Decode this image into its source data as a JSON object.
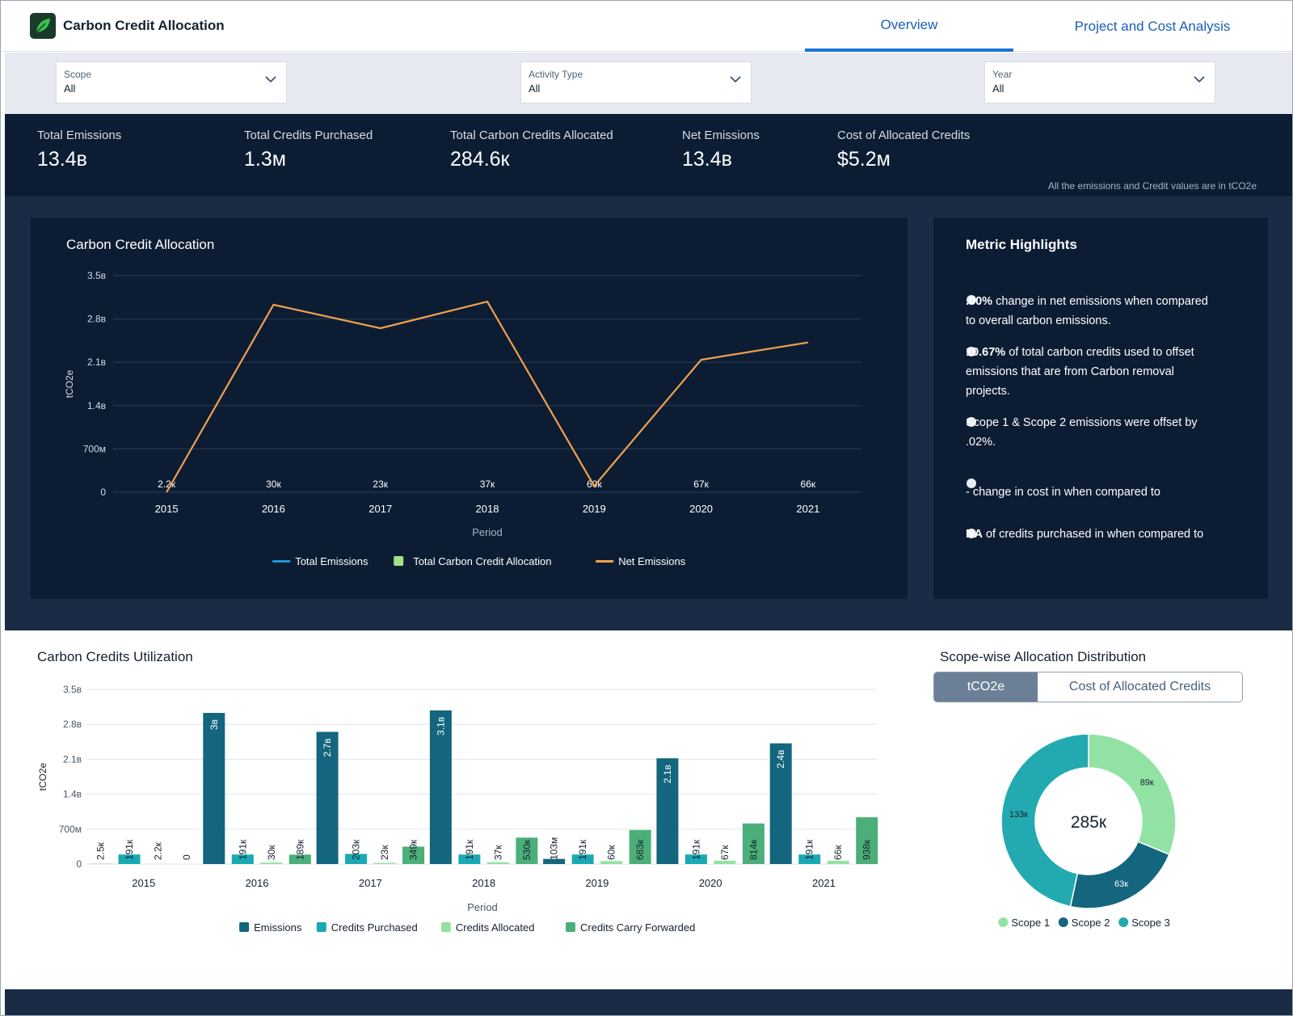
{
  "header": {
    "title": "Carbon Credit Allocation",
    "tabs": [
      {
        "label": "Overview",
        "active": true
      },
      {
        "label": "Project and Cost Analysis",
        "active": false
      }
    ]
  },
  "filters": [
    {
      "label": "Scope",
      "value": "All"
    },
    {
      "label": "Activity Type",
      "value": "All"
    },
    {
      "label": "Year",
      "value": "All"
    }
  ],
  "kpis": [
    {
      "label": "Total Emissions",
      "value": "13.4в"
    },
    {
      "label": "Total Credits Purchased",
      "value": "1.3м"
    },
    {
      "label": "Total Carbon Credits Allocated",
      "value": "284.6к"
    },
    {
      "label": "Net Emissions",
      "value": "13.4в"
    },
    {
      "label": "Cost of Allocated Credits",
      "value": "$5.2м"
    }
  ],
  "units_note": "All the emissions and Credit values are in tCO2e",
  "highlights": {
    "title": "Metric Highlights",
    "items": [
      {
        "bold": ".00%",
        "text": " change in net emissions when compared to overall carbon emissions."
      },
      {
        "bold": "10.67%",
        "text": "  of total carbon credits used to offset emissions that are from Carbon removal projects."
      },
      {
        "bold": "",
        "text": "Scope 1 & Scope 2 emissions were offset by .02%."
      },
      {
        "bold": "",
        "text": "-  change in cost in   when compared to"
      },
      {
        "bold": "NA",
        "text": " of credits purchased in  when compared to"
      }
    ]
  },
  "chart_data": [
    {
      "type": "line",
      "title": "Carbon Credit Allocation",
      "xlabel": "Period",
      "ylabel": "tCO2e",
      "categories": [
        "2015",
        "2016",
        "2017",
        "2018",
        "2019",
        "2020",
        "2021"
      ],
      "y_ticks": [
        "0",
        "700м",
        "1.4в",
        "2.1в",
        "2.8в",
        "3.5в"
      ],
      "ylim": [
        0,
        3.5
      ],
      "series": [
        {
          "name": "Net Emissions",
          "color": "#f0a050",
          "values": [
            0.0,
            3.03,
            2.65,
            3.08,
            0.1,
            2.14,
            2.42
          ]
        }
      ],
      "data_labels": [
        "2.2к",
        "30к",
        "23к",
        "37к",
        "60к",
        "67к",
        "66к"
      ],
      "legend": [
        {
          "name": "Total Emissions",
          "color": "#1b96d8",
          "shape": "line"
        },
        {
          "name": "Total Carbon Credit Allocation",
          "color": "#a8e08a",
          "shape": "square"
        },
        {
          "name": "Net Emissions",
          "color": "#f0a050",
          "shape": "line"
        }
      ],
      "grid": true
    },
    {
      "type": "bar",
      "title": "Carbon Credits Utilization",
      "xlabel": "Period",
      "ylabel": "tCO2e",
      "categories": [
        "2015",
        "2016",
        "2017",
        "2018",
        "2019",
        "2020",
        "2021"
      ],
      "y_ticks": [
        "0",
        "700м",
        "1.4в",
        "2.1в",
        "2.8в",
        "3.5в"
      ],
      "ylim": [
        0,
        3.5
      ],
      "series": [
        {
          "name": "Emissions",
          "color": "#13667e",
          "values": [
            0.0025,
            3.03,
            2.65,
            3.08,
            0.103,
            2.12,
            2.42
          ],
          "labels": [
            "2.5к",
            "3в",
            "2.7в",
            "3.1в",
            "103м",
            "2.1в",
            "2.4в"
          ]
        },
        {
          "name": "Credits Purchased",
          "color": "#1aa9b3",
          "values": [
            0.191,
            0.191,
            0.203,
            0.191,
            0.191,
            0.191,
            0.191
          ],
          "labels": [
            "191к",
            "191к",
            "203к",
            "191к",
            "191к",
            "191к",
            "191к"
          ]
        },
        {
          "name": "Credits Allocated",
          "color": "#92e3a3",
          "values": [
            0.0022,
            0.03,
            0.023,
            0.037,
            0.06,
            0.067,
            0.066
          ],
          "labels": [
            "2.2к",
            "30к",
            "23к",
            "37к",
            "60к",
            "67к",
            "66к"
          ]
        },
        {
          "name": "Credits Carry Forwarded",
          "color": "#4caf7a",
          "values": [
            0,
            0.189,
            0.349,
            0.53,
            0.683,
            0.814,
            0.938
          ],
          "labels": [
            "0",
            "189к",
            "349к",
            "530к",
            "683к",
            "814к",
            "938к"
          ]
        }
      ],
      "grid": true
    },
    {
      "type": "pie",
      "title": "Scope-wise Allocation Distribution",
      "center_label": "285к",
      "slices": [
        {
          "name": "Scope 1",
          "value": 89,
          "label": "89к",
          "color": "#92e3a3"
        },
        {
          "name": "Scope 2",
          "value": 63,
          "label": "63к",
          "color": "#13667e"
        },
        {
          "name": "Scope 3",
          "value": 133,
          "label": "133к",
          "color": "#23aab0"
        }
      ],
      "toggle": [
        {
          "label": "tCO2e",
          "selected": true
        },
        {
          "label": "Cost of Allocated Credits",
          "selected": false
        }
      ]
    }
  ]
}
